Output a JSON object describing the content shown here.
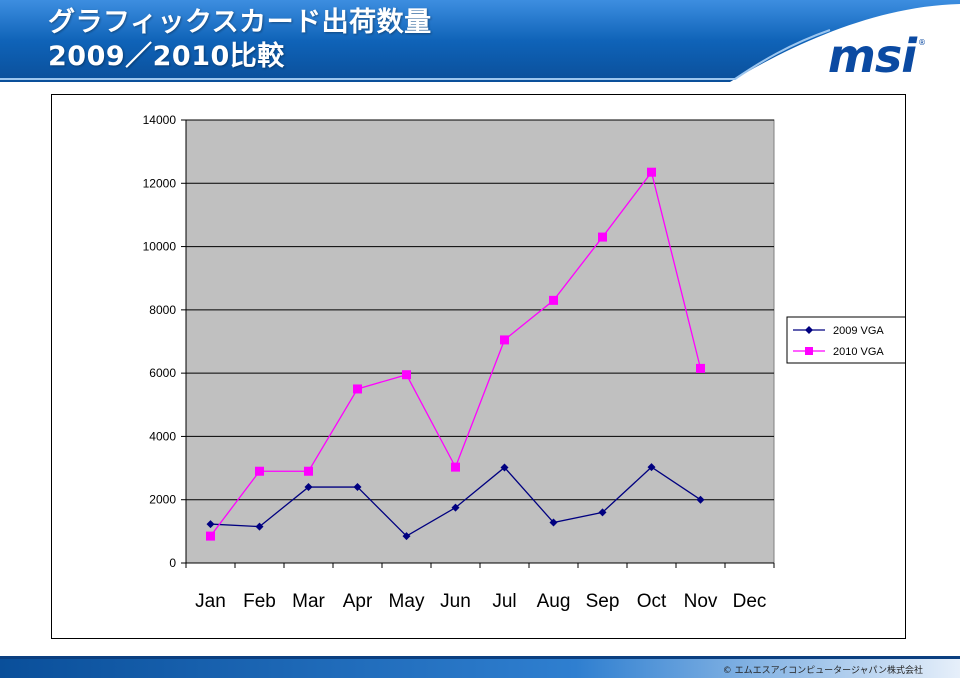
{
  "header": {
    "title_line1": "グラフィックスカード出荷数量",
    "title_line2": "2009／2010比較",
    "logo_text": "msi",
    "logo_mark": "®"
  },
  "footer": {
    "copyright": "© エムエスアイコンピュータージャパン株式会社"
  },
  "colors": {
    "banner_blue": "#0f63b8",
    "plot_bg": "#c0c0c0",
    "series_2009": "#000080",
    "series_2010": "#ff00ff"
  },
  "chart_data": {
    "type": "line",
    "categories": [
      "Jan",
      "Feb",
      "Mar",
      "Apr",
      "May",
      "Jun",
      "Jul",
      "Aug",
      "Sep",
      "Oct",
      "Nov",
      "Dec"
    ],
    "ylim": [
      0,
      14000
    ],
    "yticks": [
      "0",
      "2000",
      "4000",
      "6000",
      "8000",
      "10000",
      "12000",
      "14000"
    ],
    "grid": true,
    "legend_position": "right",
    "series": [
      {
        "name": "2009 VGA",
        "color": "#000080",
        "marker": "diamond",
        "values": [
          1230,
          1150,
          2400,
          2400,
          850,
          1750,
          3020,
          1280,
          1600,
          3030,
          2000,
          null
        ]
      },
      {
        "name": "2010 VGA",
        "color": "#ff00ff",
        "marker": "square",
        "values": [
          850,
          2900,
          2900,
          5500,
          5950,
          3030,
          7050,
          8300,
          10300,
          12350,
          6150,
          null
        ]
      }
    ]
  }
}
